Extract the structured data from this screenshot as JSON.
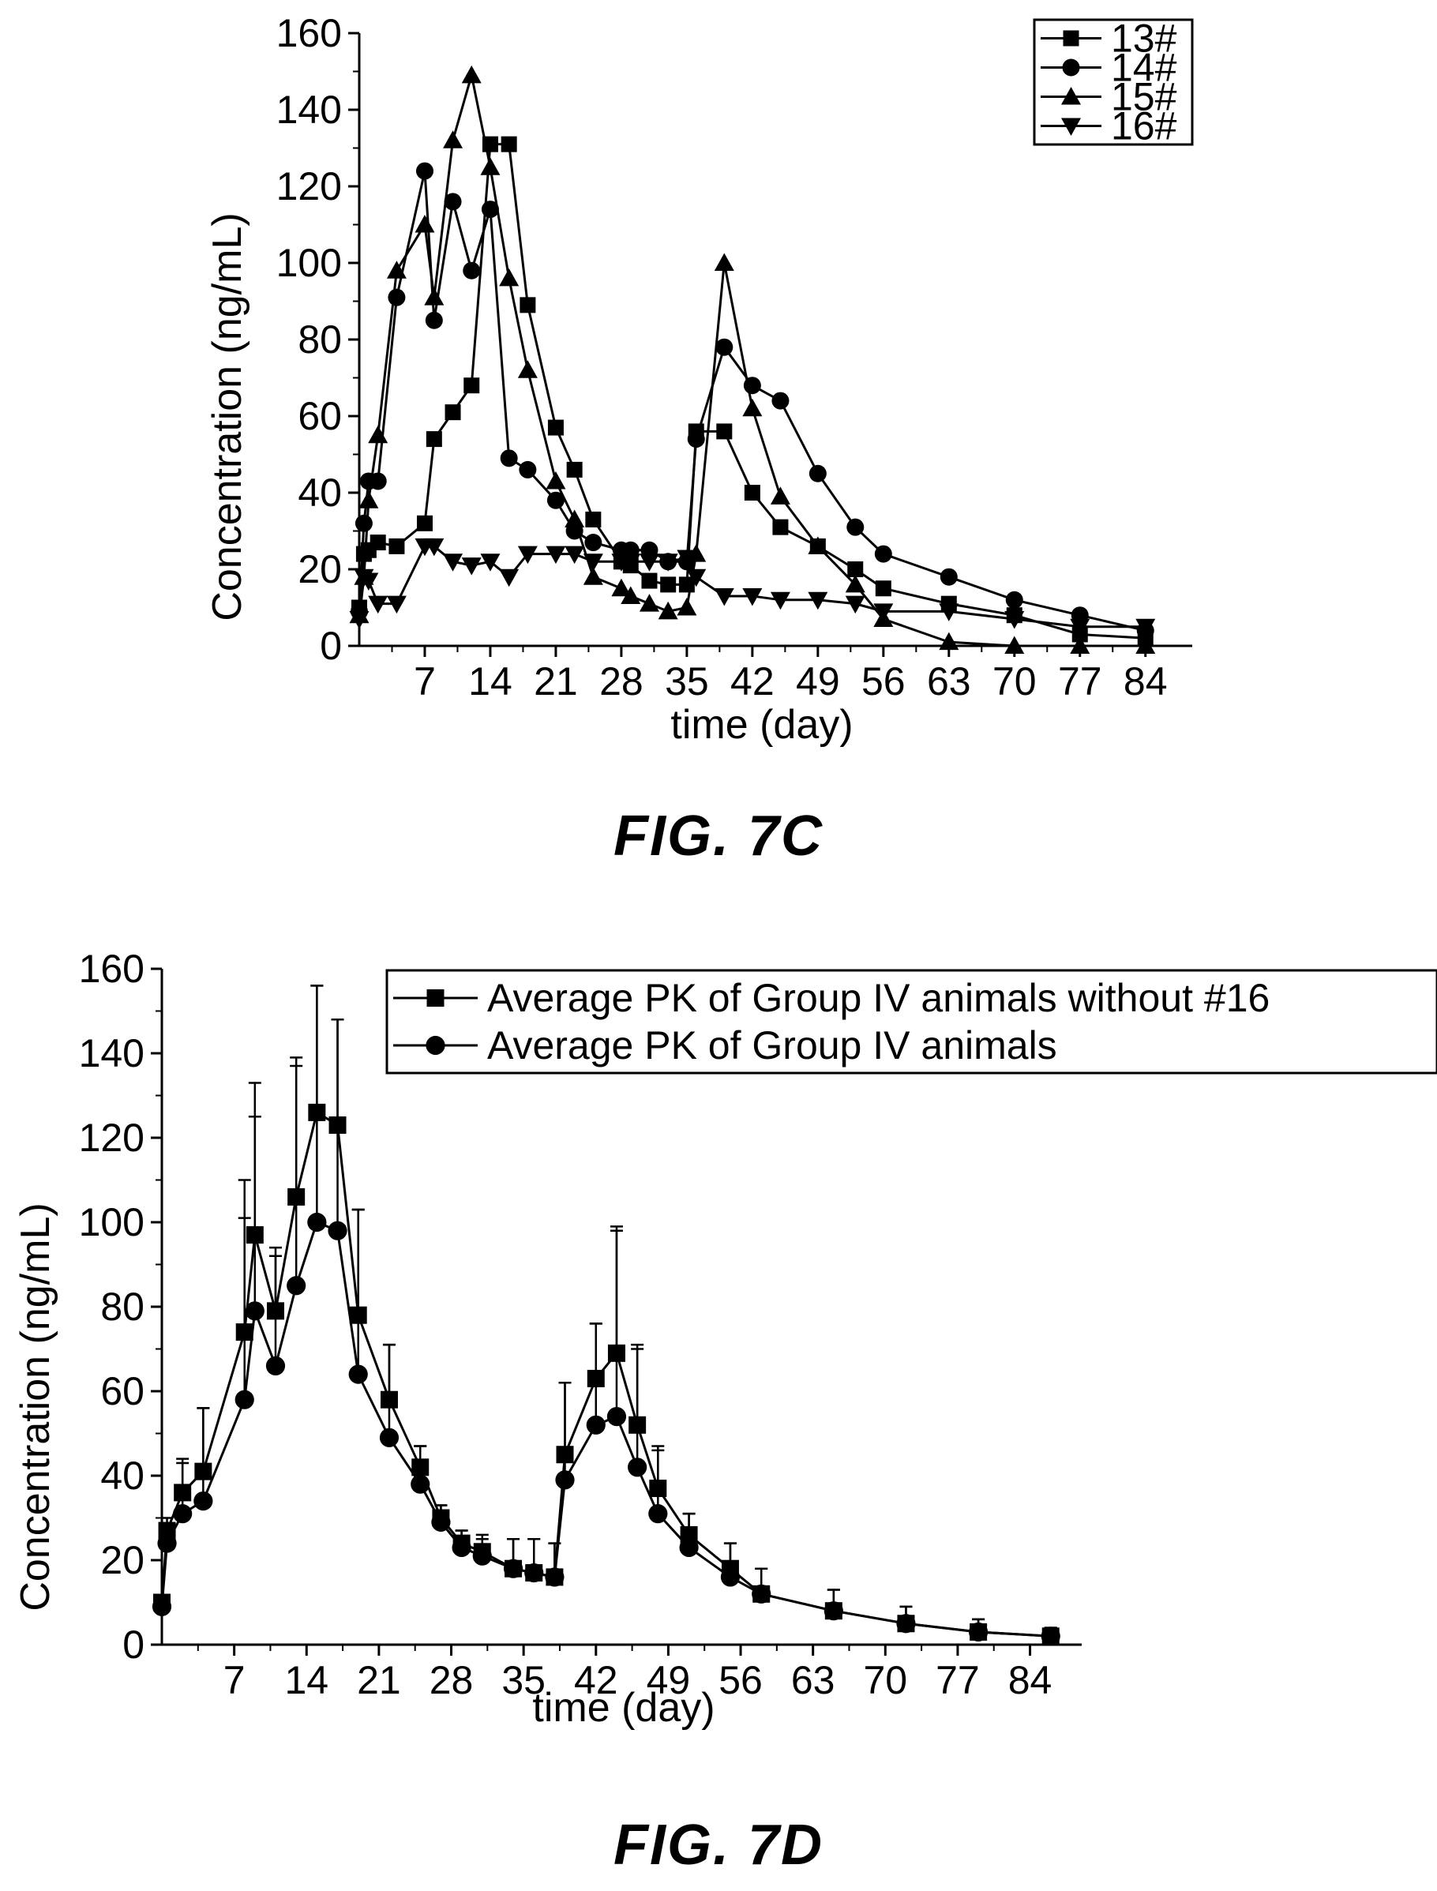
{
  "figures": [
    {
      "caption": "FIG. 7C"
    },
    {
      "caption": "FIG. 7D"
    }
  ],
  "chart_data": [
    {
      "type": "line",
      "xlabel": "time (day)",
      "ylabel": "Concentration (ng/mL)",
      "xlim": [
        0,
        89
      ],
      "ylim": [
        0,
        160
      ],
      "xticks": [
        7,
        14,
        21,
        28,
        35,
        42,
        49,
        56,
        63,
        70,
        77,
        84
      ],
      "yticks": [
        0,
        20,
        40,
        60,
        80,
        100,
        120,
        140,
        160
      ],
      "legend_position": "top-right",
      "series": [
        {
          "name": "13#",
          "marker": "square",
          "x": [
            0,
            0.5,
            1,
            2,
            4,
            7,
            8,
            10,
            12,
            14,
            16,
            18,
            21,
            23,
            25,
            28,
            29,
            31,
            33,
            35,
            36,
            39,
            42,
            45,
            49,
            53,
            56,
            63,
            70,
            77,
            84
          ],
          "y": [
            10,
            24,
            25,
            27,
            26,
            32,
            54,
            61,
            68,
            131,
            131,
            89,
            57,
            46,
            33,
            22,
            21,
            17,
            16,
            16,
            56,
            56,
            40,
            31,
            26,
            20,
            15,
            11,
            8,
            3,
            2
          ]
        },
        {
          "name": "14#",
          "marker": "circle",
          "x": [
            0,
            0.5,
            1,
            2,
            4,
            7,
            8,
            10,
            12,
            14,
            16,
            18,
            21,
            23,
            25,
            28,
            29,
            31,
            33,
            35,
            36,
            39,
            42,
            45,
            49,
            53,
            56,
            63,
            70,
            77,
            84
          ],
          "y": [
            9,
            32,
            43,
            43,
            91,
            124,
            85,
            116,
            98,
            114,
            49,
            46,
            38,
            30,
            27,
            25,
            25,
            25,
            22,
            22,
            54,
            78,
            68,
            64,
            45,
            31,
            24,
            18,
            12,
            8,
            4
          ]
        },
        {
          "name": "15#",
          "marker": "triangle-up",
          "x": [
            0,
            0.5,
            1,
            2,
            4,
            7,
            8,
            10,
            12,
            14,
            16,
            18,
            21,
            23,
            25,
            28,
            29,
            31,
            33,
            35,
            36,
            39,
            42,
            45,
            49,
            53,
            56,
            63,
            70,
            77,
            84
          ],
          "y": [
            8,
            18,
            38,
            55,
            98,
            110,
            91,
            132,
            149,
            125,
            96,
            72,
            43,
            33,
            18,
            15,
            13,
            11,
            9,
            10,
            24,
            100,
            62,
            39,
            26,
            16,
            7,
            1,
            0,
            0,
            0
          ]
        },
        {
          "name": "16#",
          "marker": "triangle-down",
          "x": [
            0,
            0.5,
            1,
            2,
            4,
            7,
            8,
            10,
            12,
            14,
            16,
            18,
            21,
            23,
            25,
            28,
            29,
            31,
            33,
            35,
            36,
            39,
            42,
            45,
            49,
            53,
            56,
            63,
            70,
            77,
            84
          ],
          "y": [
            7,
            18,
            17,
            11,
            11,
            26,
            26,
            22,
            21,
            22,
            18,
            24,
            24,
            24,
            22,
            22,
            22,
            22,
            22,
            23,
            18,
            13,
            13,
            12,
            12,
            11,
            9,
            9,
            7,
            5,
            5
          ]
        }
      ]
    },
    {
      "type": "line",
      "xlabel": "time (day)",
      "ylabel": "Concentration (ng/mL)",
      "xlim": [
        0,
        89
      ],
      "ylim": [
        0,
        160
      ],
      "xticks": [
        7,
        14,
        21,
        28,
        35,
        42,
        49,
        56,
        63,
        70,
        77,
        84
      ],
      "yticks": [
        0,
        20,
        40,
        60,
        80,
        100,
        120,
        140,
        160
      ],
      "legend_position": "top-right",
      "series": [
        {
          "name": "Average PK of Group IV animals without #16",
          "marker": "square",
          "x": [
            0,
            0.5,
            2,
            4,
            8,
            9,
            11,
            13,
            15,
            17,
            19,
            22,
            25,
            27,
            29,
            31,
            34,
            36,
            38,
            39,
            42,
            44,
            46,
            48,
            51,
            55,
            58,
            65,
            72,
            79,
            86
          ],
          "y": [
            10,
            27,
            36,
            41,
            74,
            97,
            79,
            106,
            126,
            123,
            78,
            58,
            42,
            30,
            24,
            22,
            18,
            17,
            16,
            45,
            63,
            69,
            52,
            37,
            26,
            18,
            12,
            8,
            5,
            3,
            2
          ],
          "err": [
            0,
            3,
            8,
            15,
            36,
            36,
            15,
            33,
            30,
            25,
            25,
            13,
            5,
            3,
            3,
            4,
            7,
            8,
            8,
            17,
            13,
            30,
            18,
            9,
            5,
            6,
            6,
            5,
            4,
            3,
            2
          ]
        },
        {
          "name": "Average PK of Group IV animals",
          "marker": "circle",
          "x": [
            0,
            0.5,
            2,
            4,
            8,
            9,
            11,
            13,
            15,
            17,
            19,
            22,
            25,
            27,
            29,
            31,
            34,
            36,
            38,
            39,
            42,
            44,
            46,
            48,
            51,
            55,
            58,
            65,
            72,
            79,
            86
          ],
          "y": [
            9,
            24,
            31,
            34,
            58,
            79,
            66,
            85,
            100,
            98,
            64,
            49,
            38,
            29,
            23,
            21,
            18,
            17,
            16,
            39,
            52,
            54,
            42,
            31,
            23,
            16,
            12,
            8,
            5,
            3,
            2
          ],
          "err": [
            0,
            3,
            12,
            22,
            43,
            46,
            26,
            52,
            56,
            50,
            39,
            22,
            9,
            4,
            4,
            4,
            7,
            8,
            8,
            23,
            24,
            44,
            29,
            16,
            8,
            8,
            6,
            5,
            4,
            3,
            2
          ]
        }
      ]
    }
  ]
}
